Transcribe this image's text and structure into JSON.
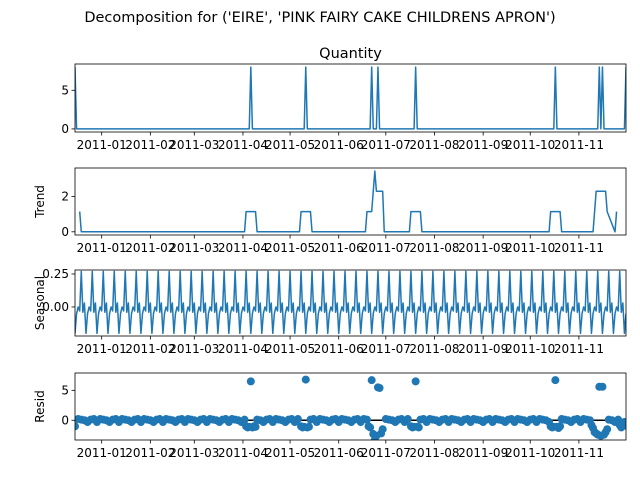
{
  "figure_title": "Decomposition for ('EIRE', 'PINK FAIRY CAKE CHILDRENS APRON')",
  "chart_data": [
    {
      "type": "line",
      "title": "Quantity",
      "ylabel": "",
      "xlabel": "",
      "x_range": [
        "2010-12-15",
        "2011-12-01"
      ],
      "ylim": [
        -0.4,
        8.4
      ],
      "yticks": [
        0,
        5
      ],
      "xticks": [
        "2011-01",
        "2011-02",
        "2011-03",
        "2011-04",
        "2011-05",
        "2011-06",
        "2011-07",
        "2011-08",
        "2011-09",
        "2011-10",
        "2011-11"
      ],
      "grid": false,
      "series": [
        {
          "color": "#1f77b4",
          "x": [
            "2010-12-15",
            "2010-12-16",
            "2011-04-05",
            "2011-04-06",
            "2011-04-07",
            "2011-05-10",
            "2011-05-11",
            "2011-05-12",
            "2011-06-21",
            "2011-06-22",
            "2011-06-23",
            "2011-06-25",
            "2011-06-26",
            "2011-06-27",
            "2011-07-19",
            "2011-07-20",
            "2011-07-21",
            "2011-10-16",
            "2011-10-17",
            "2011-10-18",
            "2011-11-13",
            "2011-11-14",
            "2011-11-15",
            "2011-11-16",
            "2011-11-17",
            "2011-11-30",
            "2011-12-01"
          ],
          "y": [
            8,
            0,
            0,
            8,
            0,
            0,
            8,
            0,
            0,
            8,
            0,
            0,
            8,
            0,
            0,
            8,
            0,
            0,
            8,
            0,
            0,
            8,
            0,
            8,
            0,
            0,
            8
          ]
        }
      ]
    },
    {
      "type": "line",
      "title": "",
      "ylabel": "Trend",
      "xlabel": "",
      "x_range": [
        "2010-12-15",
        "2011-12-01"
      ],
      "ylim": [
        -0.18,
        3.6
      ],
      "yticks": [
        0,
        2
      ],
      "xticks": [
        "2011-01",
        "2011-02",
        "2011-03",
        "2011-04",
        "2011-05",
        "2011-06",
        "2011-07",
        "2011-08",
        "2011-09",
        "2011-10",
        "2011-11"
      ],
      "grid": false,
      "series": [
        {
          "color": "#1f77b4",
          "x": [
            "2010-12-18",
            "2010-12-19",
            "2011-04-02",
            "2011-04-03",
            "2011-04-09",
            "2011-04-10",
            "2011-05-07",
            "2011-05-08",
            "2011-05-14",
            "2011-05-15",
            "2011-06-18",
            "2011-06-19",
            "2011-06-22",
            "2011-06-23",
            "2011-06-24",
            "2011-06-25",
            "2011-06-29",
            "2011-06-30",
            "2011-07-16",
            "2011-07-17",
            "2011-07-23",
            "2011-07-24",
            "2011-10-13",
            "2011-10-14",
            "2011-10-20",
            "2011-10-21",
            "2011-11-10",
            "2011-11-11",
            "2011-11-12",
            "2011-11-18",
            "2011-11-19",
            "2011-11-24",
            "2011-11-25"
          ],
          "y": [
            1.14,
            0,
            0,
            1.14,
            1.14,
            0,
            0,
            1.14,
            1.14,
            0,
            0,
            1.14,
            1.14,
            2.29,
            3.43,
            2.29,
            2.29,
            0,
            0,
            1.14,
            1.14,
            0,
            0,
            1.14,
            1.14,
            0,
            0,
            1.14,
            2.29,
            2.29,
            1.14,
            0,
            1.14
          ]
        }
      ]
    },
    {
      "type": "line",
      "title": "",
      "ylabel": "Seasonal",
      "xlabel": "",
      "x_range": [
        "2010-12-15",
        "2011-12-01"
      ],
      "ylim": [
        -0.22,
        0.28
      ],
      "yticks": [
        0.0,
        0.25
      ],
      "ytick_labels": [
        "0.00",
        "0.25"
      ],
      "xticks": [
        "2011-01",
        "2011-02",
        "2011-03",
        "2011-04",
        "2011-05",
        "2011-06",
        "2011-07",
        "2011-08",
        "2011-09",
        "2011-10",
        "2011-11"
      ],
      "grid": false,
      "period_days": 7,
      "weekly_pattern": [
        -0.2,
        -0.05,
        0.0,
        -0.03,
        0.27,
        -0.04,
        0.03
      ],
      "series": [
        {
          "color": "#1f77b4",
          "x_start": "2010-12-15",
          "x_end": "2011-12-01"
        }
      ]
    },
    {
      "type": "scatter",
      "title": "",
      "ylabel": "Resid",
      "xlabel": "",
      "x_range": [
        "2010-12-15",
        "2011-12-01"
      ],
      "ylim": [
        -3.3,
        7.9
      ],
      "yticks": [
        0,
        5
      ],
      "xticks": [
        "2011-01",
        "2011-02",
        "2011-03",
        "2011-04",
        "2011-05",
        "2011-06",
        "2011-07",
        "2011-08",
        "2011-09",
        "2011-10",
        "2011-11"
      ],
      "grid": false,
      "zero_line": true,
      "baseline_weekly_pattern": [
        -0.3,
        0.2,
        0.1,
        0.0,
        -0.3,
        0.1,
        0.2
      ],
      "points": [
        {
          "x": "2010-12-15",
          "y": -1.0
        },
        {
          "x": "2011-04-03",
          "y": -1.0
        },
        {
          "x": "2011-04-04",
          "y": -1.2
        },
        {
          "x": "2011-04-05",
          "y": -1.1
        },
        {
          "x": "2011-04-06",
          "y": 6.5
        },
        {
          "x": "2011-04-07",
          "y": -1.2
        },
        {
          "x": "2011-04-08",
          "y": -1.0
        },
        {
          "x": "2011-04-09",
          "y": -1.1
        },
        {
          "x": "2011-05-08",
          "y": -1.0
        },
        {
          "x": "2011-05-09",
          "y": -1.2
        },
        {
          "x": "2011-05-10",
          "y": -1.1
        },
        {
          "x": "2011-05-11",
          "y": 6.8
        },
        {
          "x": "2011-05-12",
          "y": -1.2
        },
        {
          "x": "2011-05-13",
          "y": -1.1
        },
        {
          "x": "2011-06-20",
          "y": -1.0
        },
        {
          "x": "2011-06-21",
          "y": -1.2
        },
        {
          "x": "2011-06-22",
          "y": 6.7
        },
        {
          "x": "2011-06-23",
          "y": -2.3
        },
        {
          "x": "2011-06-24",
          "y": -3.3
        },
        {
          "x": "2011-06-25",
          "y": -2.6
        },
        {
          "x": "2011-06-26",
          "y": 5.5
        },
        {
          "x": "2011-06-27",
          "y": 5.4
        },
        {
          "x": "2011-06-28",
          "y": -2.2
        },
        {
          "x": "2011-06-29",
          "y": -1.5
        },
        {
          "x": "2011-07-17",
          "y": -1.0
        },
        {
          "x": "2011-07-18",
          "y": -1.2
        },
        {
          "x": "2011-07-19",
          "y": -1.1
        },
        {
          "x": "2011-07-20",
          "y": 6.5
        },
        {
          "x": "2011-07-21",
          "y": -1.1
        },
        {
          "x": "2011-07-22",
          "y": -1.2
        },
        {
          "x": "2011-10-14",
          "y": -1.0
        },
        {
          "x": "2011-10-15",
          "y": -1.2
        },
        {
          "x": "2011-10-16",
          "y": -1.1
        },
        {
          "x": "2011-10-17",
          "y": 6.7
        },
        {
          "x": "2011-10-18",
          "y": -1.1
        },
        {
          "x": "2011-10-19",
          "y": -1.3
        },
        {
          "x": "2011-10-20",
          "y": -1.0
        },
        {
          "x": "2011-11-09",
          "y": -0.8
        },
        {
          "x": "2011-11-10",
          "y": -1.3
        },
        {
          "x": "2011-11-11",
          "y": -2.0
        },
        {
          "x": "2011-11-12",
          "y": -2.2
        },
        {
          "x": "2011-11-13",
          "y": -2.4
        },
        {
          "x": "2011-11-14",
          "y": 5.6
        },
        {
          "x": "2011-11-15",
          "y": -2.6
        },
        {
          "x": "2011-11-16",
          "y": 5.6
        },
        {
          "x": "2011-11-17",
          "y": -2.4
        },
        {
          "x": "2011-11-18",
          "y": -2.0
        },
        {
          "x": "2011-11-19",
          "y": -1.5
        },
        {
          "x": "2011-11-27",
          "y": -0.8
        },
        {
          "x": "2011-11-28",
          "y": -1.2
        },
        {
          "x": "2011-12-01",
          "y": -0.9
        }
      ],
      "marker_color": "#1f77b4"
    }
  ]
}
